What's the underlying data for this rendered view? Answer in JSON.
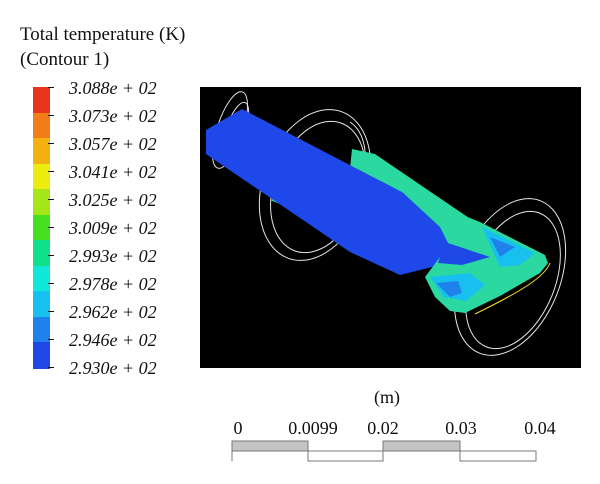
{
  "legend": {
    "title_line1": "Total temperature (K)",
    "title_line2": "(Contour 1)",
    "labels": [
      "3.088e + 02",
      "3.073e + 02",
      "3.057e + 02",
      "3.041e + 02",
      "3.025e + 02",
      "3.009e + 02",
      "2.993e + 02",
      "2.978e + 02",
      "2.962e + 02",
      "2.946e + 02",
      "2.930e + 02"
    ],
    "colors": [
      "#e8341c",
      "#f07d18",
      "#f4b212",
      "#ecec10",
      "#a4e618",
      "#44e020",
      "#10e08c",
      "#10e8dc",
      "#18c0f0",
      "#1e82ea",
      "#1e48e6"
    ]
  },
  "scale": {
    "unit": "(m)",
    "labels": [
      "0",
      "0.0099",
      "0.02",
      "0.03",
      "0.04"
    ]
  }
}
